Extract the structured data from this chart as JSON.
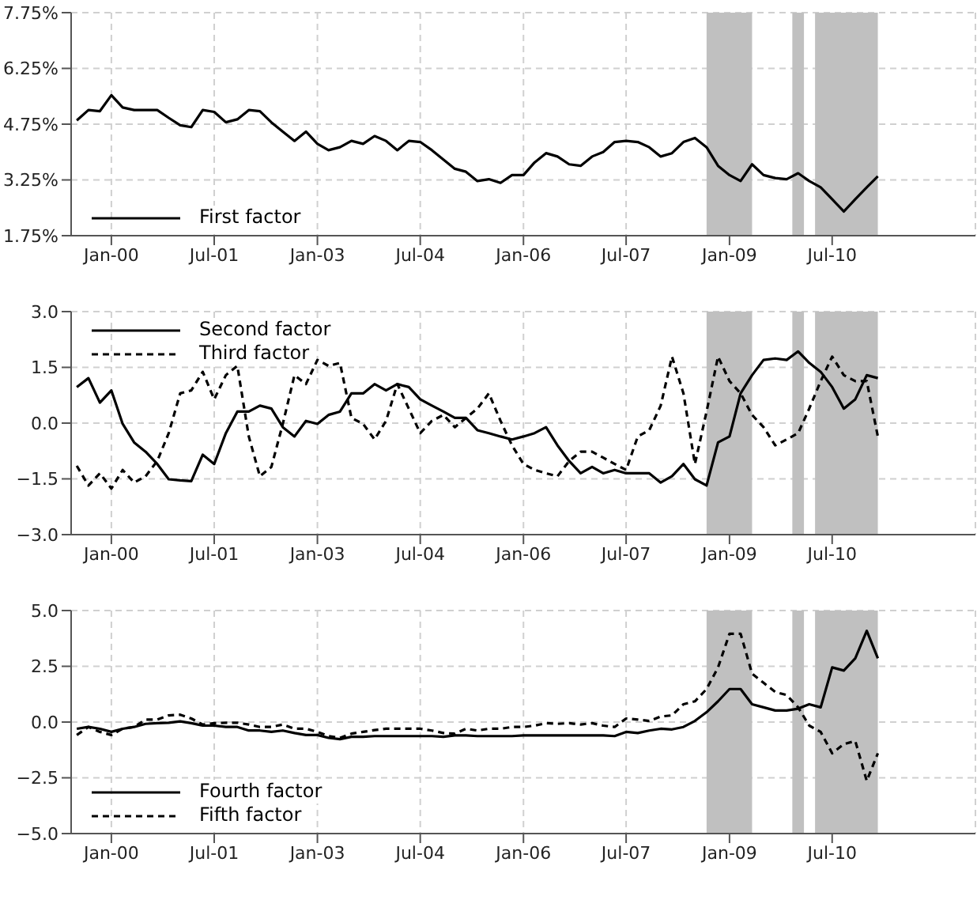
{
  "chart_data": [
    {
      "type": "line",
      "x": [
        "1999-07",
        "1999-09",
        "1999-11",
        "2000-01",
        "2000-03",
        "2000-05",
        "2000-07",
        "2000-09",
        "2000-11",
        "2001-01",
        "2001-03",
        "2001-05",
        "2001-07",
        "2001-09",
        "2001-11",
        "2002-01",
        "2002-03",
        "2002-05",
        "2002-07",
        "2002-09",
        "2002-11",
        "2003-01",
        "2003-03",
        "2003-05",
        "2003-07",
        "2003-09",
        "2003-11",
        "2004-01",
        "2004-03",
        "2004-05",
        "2004-07",
        "2004-09",
        "2004-11",
        "2005-01",
        "2005-03",
        "2005-05",
        "2005-07",
        "2005-09",
        "2005-11",
        "2006-01",
        "2006-03",
        "2006-05",
        "2006-07",
        "2006-09",
        "2006-11",
        "2007-01",
        "2007-03",
        "2007-05",
        "2007-07",
        "2007-09",
        "2007-11",
        "2008-01",
        "2008-03",
        "2008-05",
        "2008-07",
        "2008-09",
        "2008-11",
        "2009-01",
        "2009-03",
        "2009-05",
        "2009-07",
        "2009-09",
        "2009-11",
        "2010-01",
        "2010-03",
        "2010-05",
        "2010-07",
        "2010-09",
        "2010-11",
        "2011-01",
        "2011-03"
      ],
      "series": [
        {
          "name": "First factor",
          "color": "#000000",
          "line_style": "solid",
          "values": [
            4.85,
            5.13,
            5.1,
            5.53,
            5.2,
            5.13,
            5.13,
            5.13,
            4.92,
            4.72,
            4.67,
            5.13,
            5.08,
            4.8,
            4.88,
            5.13,
            5.1,
            4.8,
            4.55,
            4.3,
            4.55,
            4.22,
            4.05,
            4.13,
            4.3,
            4.22,
            4.43,
            4.3,
            4.05,
            4.3,
            4.27,
            4.05,
            3.8,
            3.55,
            3.47,
            3.22,
            3.27,
            3.17,
            3.38,
            3.38,
            3.72,
            3.97,
            3.88,
            3.67,
            3.63,
            3.88,
            4.0,
            4.27,
            4.3,
            4.27,
            4.13,
            3.88,
            3.97,
            4.27,
            4.38,
            4.13,
            3.63,
            3.38,
            3.22,
            3.67,
            3.38,
            3.3,
            3.27,
            3.43,
            3.22,
            3.05,
            2.73,
            2.4,
            2.73,
            3.05,
            3.35
          ]
        }
      ],
      "xlim": [
        "1999-06",
        "2012-08"
      ],
      "xticks": [
        {
          "value": "2000-01",
          "label": "Jan-00"
        },
        {
          "value": "2001-07",
          "label": "Jul-01"
        },
        {
          "value": "2003-01",
          "label": "Jan-03"
        },
        {
          "value": "2004-07",
          "label": "Jul-04"
        },
        {
          "value": "2006-01",
          "label": "Jan-06"
        },
        {
          "value": "2007-07",
          "label": "Jul-07"
        },
        {
          "value": "2009-01",
          "label": "Jan-09"
        },
        {
          "value": "2010-07",
          "label": "Jul-10"
        }
      ],
      "ylim": [
        1.75,
        7.75
      ],
      "yticks": [
        {
          "value": 1.75,
          "label": "1.75%"
        },
        {
          "value": 3.25,
          "label": "3.25%"
        },
        {
          "value": 4.75,
          "label": "4.75%"
        },
        {
          "value": 6.25,
          "label": "6.25%"
        },
        {
          "value": 7.75,
          "label": "7.75%"
        }
      ],
      "bands": [
        {
          "axis": "x",
          "from": "2008-09",
          "to": "2009-05",
          "color": "#c0c0c0"
        },
        {
          "axis": "x",
          "from": "2009-12",
          "to": "2010-02",
          "color": "#c0c0c0"
        },
        {
          "axis": "x",
          "from": "2010-04",
          "to": "2011-03",
          "color": "#c0c0c0"
        }
      ],
      "grid": true,
      "legend": "bottom left",
      "marker": "none"
    },
    {
      "type": "line",
      "x": [
        "1999-07",
        "1999-09",
        "1999-11",
        "2000-01",
        "2000-03",
        "2000-05",
        "2000-07",
        "2000-09",
        "2000-11",
        "2001-01",
        "2001-03",
        "2001-05",
        "2001-07",
        "2001-09",
        "2001-11",
        "2002-01",
        "2002-03",
        "2002-05",
        "2002-07",
        "2002-09",
        "2002-11",
        "2003-01",
        "2003-03",
        "2003-05",
        "2003-07",
        "2003-09",
        "2003-11",
        "2004-01",
        "2004-03",
        "2004-05",
        "2004-07",
        "2004-09",
        "2004-11",
        "2005-01",
        "2005-03",
        "2005-05",
        "2005-07",
        "2005-09",
        "2005-11",
        "2006-01",
        "2006-03",
        "2006-05",
        "2006-07",
        "2006-09",
        "2006-11",
        "2007-01",
        "2007-03",
        "2007-05",
        "2007-07",
        "2007-09",
        "2007-11",
        "2008-01",
        "2008-03",
        "2008-05",
        "2008-07",
        "2008-09",
        "2008-11",
        "2009-01",
        "2009-03",
        "2009-05",
        "2009-07",
        "2009-09",
        "2009-11",
        "2010-01",
        "2010-03",
        "2010-05",
        "2010-07",
        "2010-09",
        "2010-11",
        "2011-01",
        "2011-03"
      ],
      "series": [
        {
          "name": "Second factor",
          "color": "#000000",
          "line_style": "solid",
          "values": [
            0.97,
            1.21,
            0.55,
            0.88,
            -0.02,
            -0.52,
            -0.77,
            -1.1,
            -1.51,
            -1.54,
            -1.56,
            -0.85,
            -1.1,
            -0.27,
            0.31,
            0.31,
            0.47,
            0.39,
            -0.11,
            -0.36,
            0.06,
            -0.02,
            0.22,
            0.31,
            0.8,
            0.8,
            1.05,
            0.88,
            1.05,
            0.97,
            0.64,
            0.47,
            0.31,
            0.14,
            0.14,
            -0.19,
            -0.27,
            -0.36,
            -0.44,
            -0.36,
            -0.27,
            -0.11,
            -0.6,
            -1.02,
            -1.35,
            -1.18,
            -1.35,
            -1.26,
            -1.35,
            -1.35,
            -1.35,
            -1.6,
            -1.43,
            -1.1,
            -1.51,
            -1.68,
            -0.52,
            -0.36,
            0.8,
            1.29,
            1.7,
            1.74,
            1.7,
            1.93,
            1.62,
            1.38,
            0.97,
            0.39,
            0.64,
            1.29,
            1.21
          ]
        },
        {
          "name": "Third factor",
          "color": "#000000",
          "line_style": "dashed",
          "values": [
            -1.15,
            -1.68,
            -1.35,
            -1.76,
            -1.26,
            -1.6,
            -1.43,
            -1.02,
            -0.27,
            0.8,
            0.88,
            1.38,
            0.64,
            1.29,
            1.54,
            -0.36,
            -1.43,
            -1.18,
            -0.02,
            1.29,
            1.05,
            1.7,
            1.54,
            1.62,
            0.14,
            -0.02,
            -0.44,
            0.06,
            1.05,
            0.39,
            -0.27,
            0.06,
            0.22,
            -0.11,
            0.14,
            0.39,
            0.8,
            0.06,
            -0.6,
            -1.1,
            -1.26,
            -1.35,
            -1.43,
            -1.02,
            -0.77,
            -0.77,
            -0.93,
            -1.1,
            -1.26,
            -0.36,
            -0.19,
            0.47,
            1.79,
            0.8,
            -1.1,
            0.31,
            1.79,
            1.13,
            0.8,
            0.22,
            -0.11,
            -0.6,
            -0.44,
            -0.27,
            0.39,
            1.13,
            1.79,
            1.29,
            1.13,
            1.13,
            -0.36
          ]
        }
      ],
      "xlim": [
        "1999-06",
        "2012-08"
      ],
      "xticks": [
        {
          "value": "2000-01",
          "label": "Jan-00"
        },
        {
          "value": "2001-07",
          "label": "Jul-01"
        },
        {
          "value": "2003-01",
          "label": "Jan-03"
        },
        {
          "value": "2004-07",
          "label": "Jul-04"
        },
        {
          "value": "2006-01",
          "label": "Jan-06"
        },
        {
          "value": "2007-07",
          "label": "Jul-07"
        },
        {
          "value": "2009-01",
          "label": "Jan-09"
        },
        {
          "value": "2010-07",
          "label": "Jul-10"
        }
      ],
      "ylim": [
        -3,
        3
      ],
      "yticks": [
        {
          "value": -3,
          "label": "−3.0"
        },
        {
          "value": -1.5,
          "label": "−1.5"
        },
        {
          "value": 0,
          "label": "0.0"
        },
        {
          "value": 1.5,
          "label": "1.5"
        },
        {
          "value": 3,
          "label": "3.0"
        }
      ],
      "bands": [
        {
          "axis": "x",
          "from": "2008-09",
          "to": "2009-05",
          "color": "#c0c0c0"
        },
        {
          "axis": "x",
          "from": "2009-12",
          "to": "2010-02",
          "color": "#c0c0c0"
        },
        {
          "axis": "x",
          "from": "2010-04",
          "to": "2011-03",
          "color": "#c0c0c0"
        }
      ],
      "grid": true,
      "legend": "top left",
      "marker": "none"
    },
    {
      "type": "line",
      "x": [
        "1999-07",
        "1999-09",
        "1999-11",
        "2000-01",
        "2000-03",
        "2000-05",
        "2000-07",
        "2000-09",
        "2000-11",
        "2001-01",
        "2001-03",
        "2001-05",
        "2001-07",
        "2001-09",
        "2001-11",
        "2002-01",
        "2002-03",
        "2002-05",
        "2002-07",
        "2002-09",
        "2002-11",
        "2003-01",
        "2003-03",
        "2003-05",
        "2003-07",
        "2003-09",
        "2003-11",
        "2004-01",
        "2004-03",
        "2004-05",
        "2004-07",
        "2004-09",
        "2004-11",
        "2005-01",
        "2005-03",
        "2005-05",
        "2005-07",
        "2005-09",
        "2005-11",
        "2006-01",
        "2006-03",
        "2006-05",
        "2006-07",
        "2006-09",
        "2006-11",
        "2007-01",
        "2007-03",
        "2007-05",
        "2007-07",
        "2007-09",
        "2007-11",
        "2008-01",
        "2008-03",
        "2008-05",
        "2008-07",
        "2008-09",
        "2008-11",
        "2009-01",
        "2009-03",
        "2009-05",
        "2009-07",
        "2009-09",
        "2009-11",
        "2010-01",
        "2010-03",
        "2010-05",
        "2010-07",
        "2010-09",
        "2010-11",
        "2011-01",
        "2011-03"
      ],
      "series": [
        {
          "name": "Fourth factor",
          "color": "#000000",
          "line_style": "solid",
          "values": [
            -0.3,
            -0.22,
            -0.3,
            -0.44,
            -0.3,
            -0.22,
            -0.08,
            -0.05,
            -0.03,
            0.03,
            -0.05,
            -0.16,
            -0.16,
            -0.22,
            -0.22,
            -0.38,
            -0.38,
            -0.44,
            -0.38,
            -0.49,
            -0.58,
            -0.58,
            -0.71,
            -0.77,
            -0.66,
            -0.66,
            -0.63,
            -0.63,
            -0.63,
            -0.63,
            -0.63,
            -0.63,
            -0.66,
            -0.6,
            -0.6,
            -0.63,
            -0.63,
            -0.63,
            -0.63,
            -0.6,
            -0.6,
            -0.6,
            -0.6,
            -0.6,
            -0.6,
            -0.6,
            -0.6,
            -0.63,
            -0.44,
            -0.49,
            -0.38,
            -0.3,
            -0.33,
            -0.22,
            0.05,
            0.44,
            0.93,
            1.48,
            1.48,
            0.8,
            0.66,
            0.52,
            0.52,
            0.6,
            0.8,
            0.66,
            2.45,
            2.31,
            2.86,
            4.09,
            2.86
          ]
        },
        {
          "name": "Fifth factor",
          "color": "#000000",
          "line_style": "dashed",
          "values": [
            -0.58,
            -0.22,
            -0.44,
            -0.58,
            -0.3,
            -0.22,
            0.11,
            0.11,
            0.3,
            0.33,
            0.16,
            -0.11,
            -0.05,
            -0.03,
            -0.03,
            -0.11,
            -0.22,
            -0.22,
            -0.11,
            -0.3,
            -0.3,
            -0.44,
            -0.63,
            -0.71,
            -0.52,
            -0.44,
            -0.36,
            -0.3,
            -0.3,
            -0.3,
            -0.3,
            -0.38,
            -0.49,
            -0.52,
            -0.3,
            -0.38,
            -0.3,
            -0.3,
            -0.22,
            -0.22,
            -0.16,
            -0.05,
            -0.08,
            -0.05,
            -0.11,
            -0.05,
            -0.16,
            -0.22,
            0.16,
            0.11,
            0.05,
            0.25,
            0.3,
            0.8,
            0.93,
            1.48,
            2.45,
            3.96,
            3.96,
            2.17,
            1.76,
            1.35,
            1.21,
            0.66,
            -0.16,
            -0.44,
            -1.4,
            -0.99,
            -0.85,
            -2.64,
            -1.4
          ]
        }
      ],
      "xlim": [
        "1999-06",
        "2012-08"
      ],
      "xticks": [
        {
          "value": "2000-01",
          "label": "Jan-00"
        },
        {
          "value": "2001-07",
          "label": "Jul-01"
        },
        {
          "value": "2003-01",
          "label": "Jan-03"
        },
        {
          "value": "2004-07",
          "label": "Jul-04"
        },
        {
          "value": "2006-01",
          "label": "Jan-06"
        },
        {
          "value": "2007-07",
          "label": "Jul-07"
        },
        {
          "value": "2009-01",
          "label": "Jan-09"
        },
        {
          "value": "2010-07",
          "label": "Jul-10"
        }
      ],
      "ylim": [
        -5,
        5
      ],
      "yticks": [
        {
          "value": -5,
          "label": "−5.0"
        },
        {
          "value": -2.5,
          "label": "−2.5"
        },
        {
          "value": 0,
          "label": "0.0"
        },
        {
          "value": 2.5,
          "label": "2.5"
        },
        {
          "value": 5,
          "label": "5.0"
        }
      ],
      "bands": [
        {
          "axis": "x",
          "from": "2008-09",
          "to": "2009-05",
          "color": "#c0c0c0"
        },
        {
          "axis": "x",
          "from": "2009-12",
          "to": "2010-02",
          "color": "#c0c0c0"
        },
        {
          "axis": "x",
          "from": "2010-04",
          "to": "2011-03",
          "color": "#c0c0c0"
        }
      ],
      "grid": true,
      "legend": "bottom left",
      "marker": "none"
    }
  ]
}
